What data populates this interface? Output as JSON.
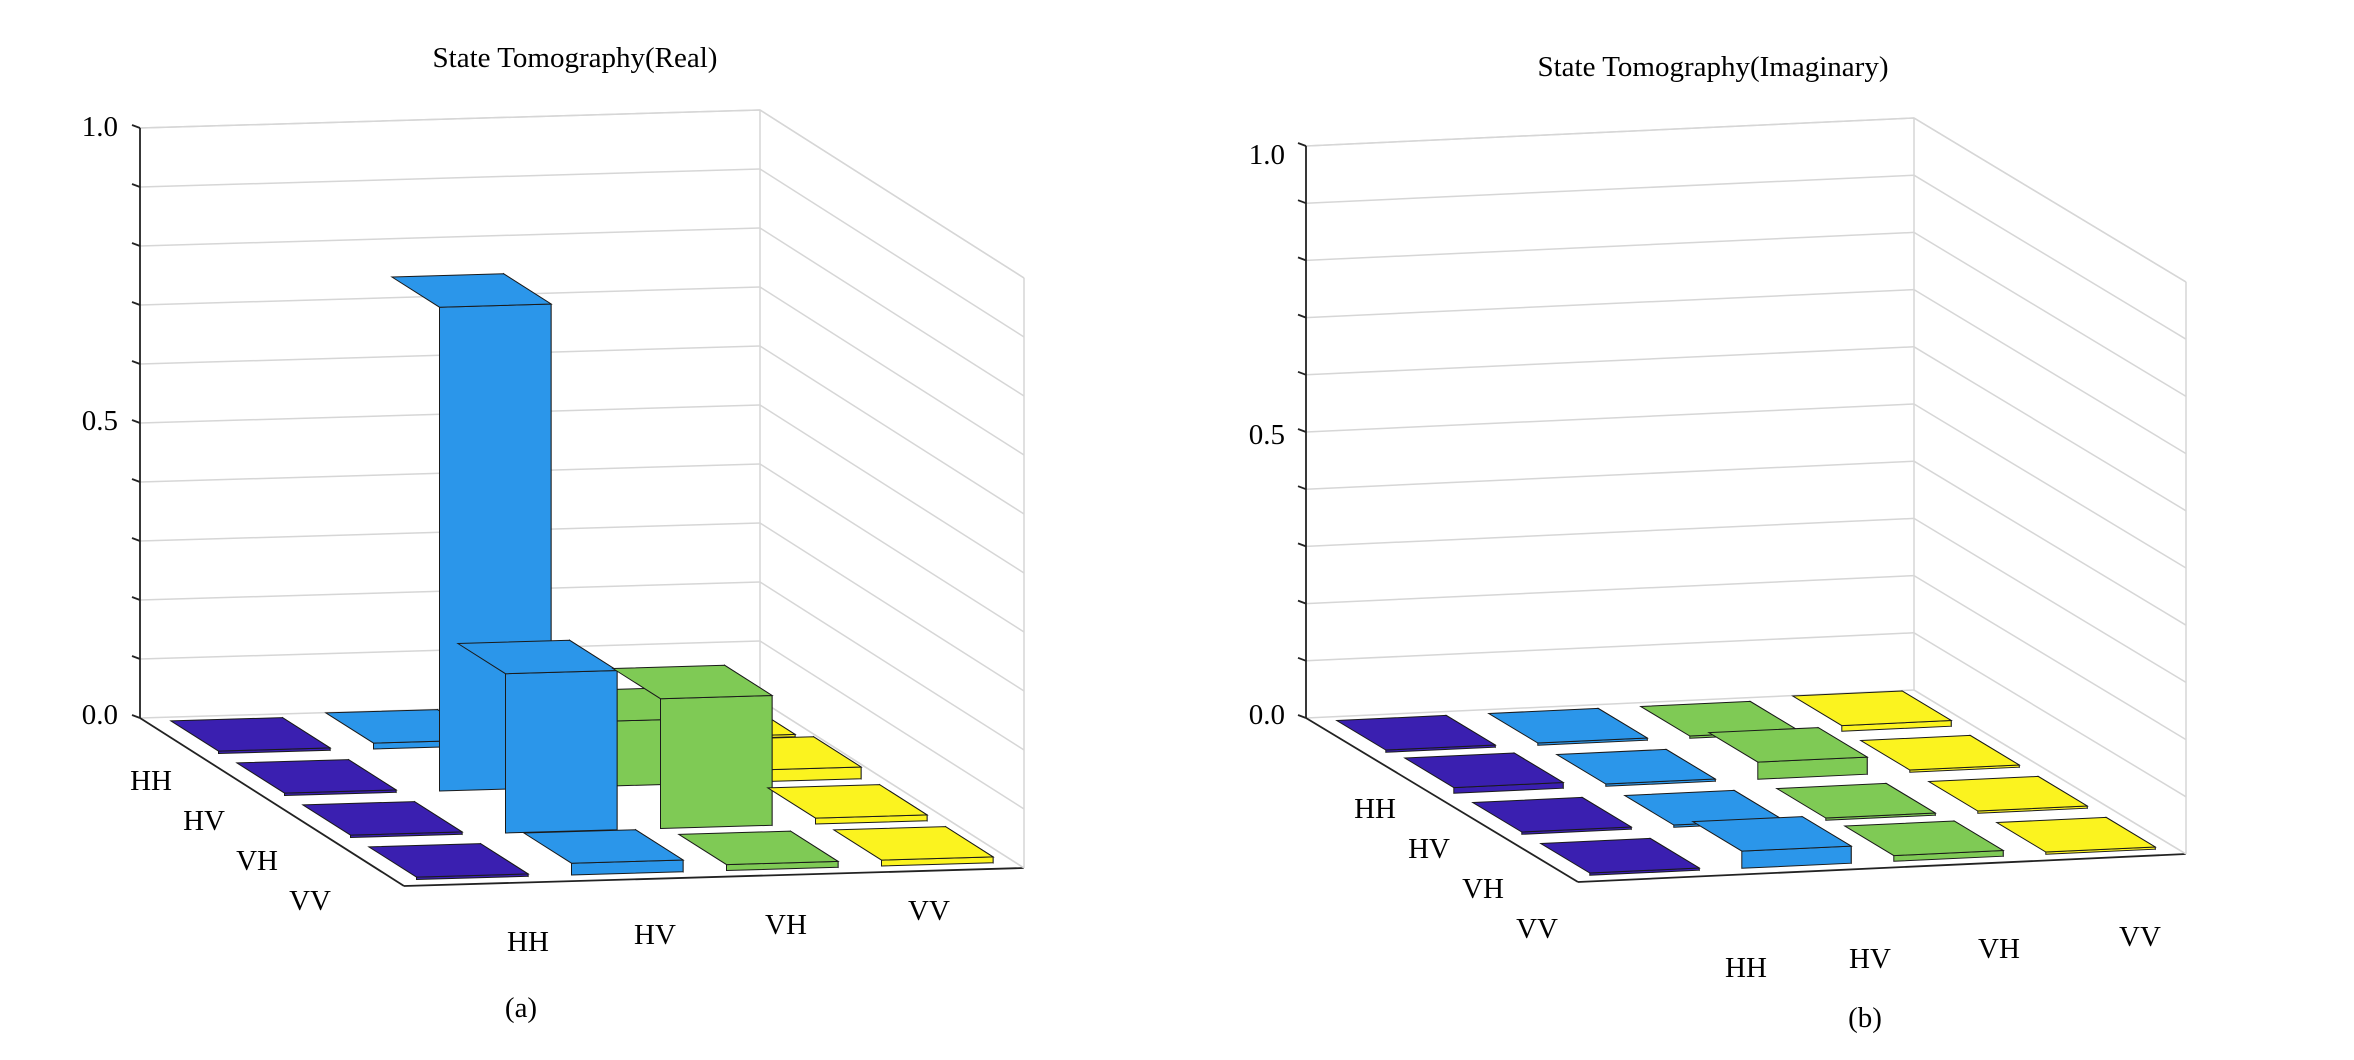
{
  "figure": {
    "panels": [
      {
        "title": "State Tomography(Real)",
        "caption": "(a)",
        "row_labels": [
          "HH",
          "HV",
          "VH",
          "VV"
        ],
        "col_labels": [
          "HH",
          "HV",
          "VH",
          "VV"
        ],
        "z_ticks": [
          "0.0",
          "0.5",
          "1.0"
        ]
      },
      {
        "title": "State Tomography(Imaginary)",
        "caption": "(b)",
        "row_labels": [
          "HH",
          "HV",
          "VH",
          "VV"
        ],
        "col_labels": [
          "HH",
          "HV",
          "VH",
          "VV"
        ],
        "z_ticks": [
          "0.0",
          "0.5",
          "1.0"
        ]
      }
    ]
  },
  "colors": {
    "col_HH": "#3a1fb0",
    "col_HV": "#2b96ea",
    "col_VH": "#7fca55",
    "col_VV": "#fbf31f",
    "grid": "#d6d6d6",
    "axis": "#222222"
  },
  "chart_data": [
    {
      "type": "bar3d",
      "title": "State Tomography(Real)",
      "caption": "(a)",
      "rows": [
        "HH",
        "HV",
        "VH",
        "VV"
      ],
      "columns": [
        "HH",
        "HV",
        "VH",
        "VV"
      ],
      "zlim": [
        0,
        1
      ],
      "z_ticks": [
        0.0,
        0.5,
        1.0
      ],
      "values": [
        [
          0.0,
          0.01,
          0.0,
          0.0
        ],
        [
          0.0,
          0.82,
          0.11,
          0.02
        ],
        [
          0.0,
          0.27,
          0.22,
          0.01
        ],
        [
          0.0,
          0.02,
          0.01,
          0.01
        ]
      ]
    },
    {
      "type": "bar3d",
      "title": "State Tomography(Imaginary)",
      "caption": "(b)",
      "rows": [
        "HH",
        "HV",
        "VH",
        "VV"
      ],
      "columns": [
        "HH",
        "HV",
        "VH",
        "VV"
      ],
      "zlim": [
        0,
        1
      ],
      "z_ticks": [
        0.0,
        0.5,
        1.0
      ],
      "values": [
        [
          0.0,
          0.0,
          0.0,
          0.01
        ],
        [
          0.01,
          0.0,
          0.03,
          0.0
        ],
        [
          0.0,
          0.0,
          0.0,
          0.0
        ],
        [
          0.0,
          0.03,
          0.01,
          0.0
        ]
      ]
    }
  ]
}
